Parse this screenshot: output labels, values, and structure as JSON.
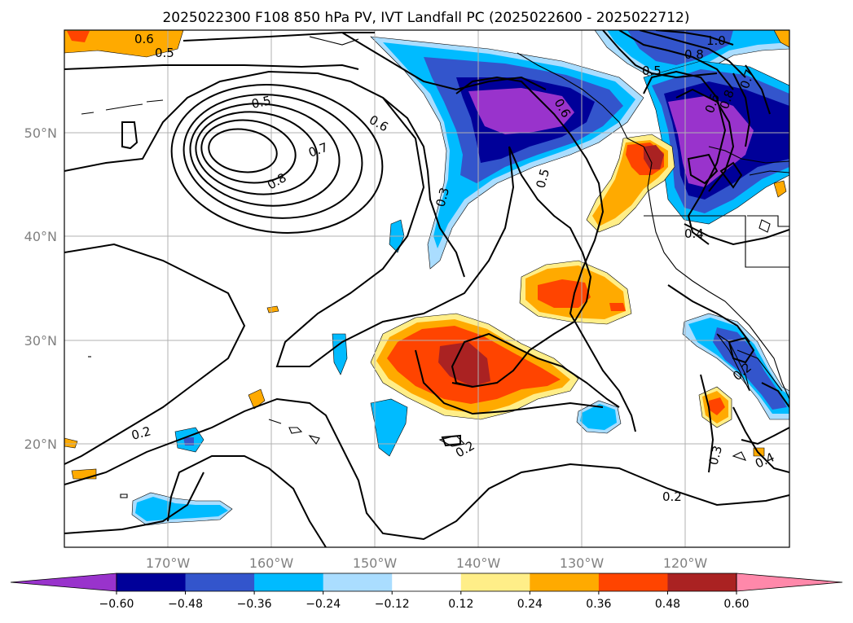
{
  "title": "2025022300 F108 850 hPa PV, IVT Landfall PC (2025022600 - 2025022712)",
  "axes": {
    "lat_ticks": [
      "50°N",
      "40°N",
      "30°N",
      "20°N"
    ],
    "lon_ticks": [
      "170°W",
      "160°W",
      "150°W",
      "140°W",
      "130°W",
      "120°W"
    ]
  },
  "colorbar": {
    "tick_labels": [
      "−0.60",
      "−0.48",
      "−0.36",
      "−0.24",
      "−0.12",
      "0.12",
      "0.24",
      "0.36",
      "0.48",
      "0.60"
    ],
    "colors": [
      "#9933CC",
      "#000099",
      "#3355CC",
      "#00BBFF",
      "#AADDFF",
      "#FFFFFF",
      "#FFEE88",
      "#FFAA00",
      "#FF4400",
      "#AA2222",
      "#FF88AA"
    ]
  },
  "contour_labels": [
    "0.6",
    "0.5",
    "0.5",
    "0.6",
    "0.7",
    "0.8",
    "0.3",
    "0.5",
    "0.5",
    "0.8",
    "1.0",
    "0.6",
    "0.6",
    "0.8",
    "0.7",
    "0.4",
    "0.2",
    "0.2",
    "0.2",
    "0.3",
    "0.4",
    "0.2"
  ]
}
